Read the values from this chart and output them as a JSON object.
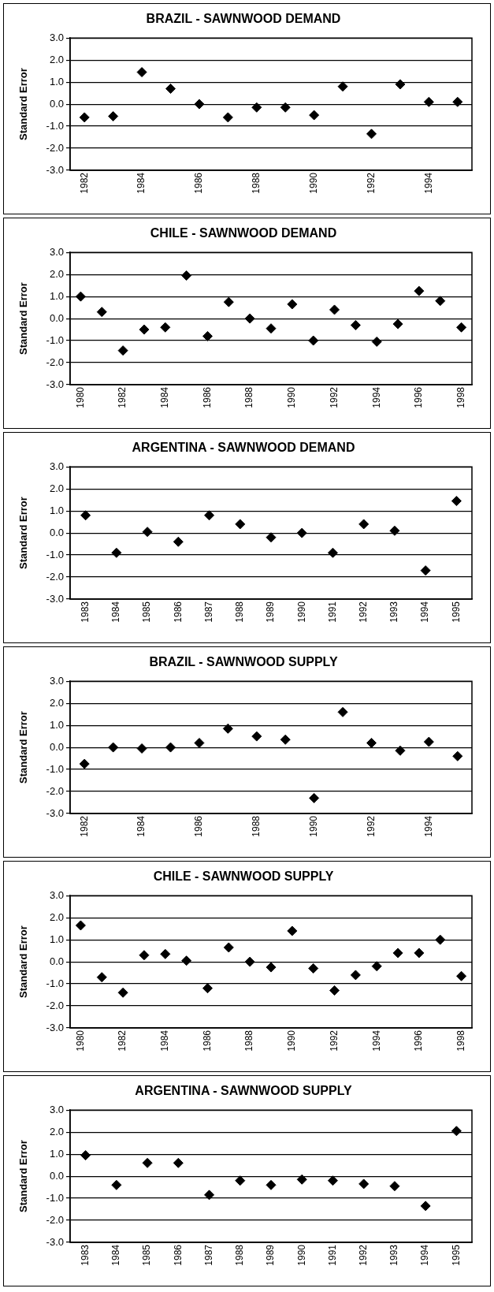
{
  "chart_data": [
    {
      "type": "scatter",
      "title": "BRAZIL - SAWNWOOD DEMAND",
      "ylabel": "Standard Error",
      "categories": [
        "1982",
        null,
        "1984",
        null,
        "1986",
        null,
        "1988",
        null,
        "1990",
        null,
        "1992",
        null,
        "1994",
        null
      ],
      "values": [
        -0.6,
        -0.55,
        1.45,
        0.7,
        0.0,
        -0.6,
        -0.15,
        -0.15,
        -0.5,
        0.8,
        -1.35,
        0.9,
        0.1,
        0.1
      ],
      "color": "#000000",
      "ylim": [
        -3,
        3
      ],
      "yticks": [
        {
          "value": -3,
          "label": "-3.0"
        },
        {
          "value": -2,
          "label": "-2.0"
        },
        {
          "value": -1,
          "label": "-1.0"
        },
        {
          "value": 0,
          "label": "0.0"
        },
        {
          "value": 1,
          "label": "1.0"
        },
        {
          "value": 2,
          "label": "2.0"
        },
        {
          "value": 3,
          "label": "3.0"
        }
      ],
      "grid": "y",
      "marker": "diamond"
    },
    {
      "type": "scatter",
      "title": "CHILE - SAWNWOOD DEMAND",
      "ylabel": "Standard Error",
      "categories": [
        "1980",
        null,
        "1982",
        null,
        "1984",
        null,
        "1986",
        null,
        "1988",
        null,
        "1990",
        null,
        "1992",
        null,
        "1994",
        null,
        "1996",
        null,
        "1998"
      ],
      "values": [
        1.0,
        0.3,
        -1.45,
        -0.5,
        -0.4,
        1.95,
        -0.8,
        0.75,
        0.0,
        -0.45,
        0.65,
        -1.0,
        0.4,
        -0.3,
        -1.05,
        -0.25,
        1.25,
        0.8,
        -0.4
      ],
      "color": "#000000",
      "ylim": [
        -3,
        3
      ],
      "yticks": [
        {
          "value": -3,
          "label": "-3.0"
        },
        {
          "value": -2,
          "label": "-2.0"
        },
        {
          "value": -1,
          "label": "-1.0"
        },
        {
          "value": 0,
          "label": "0.0"
        },
        {
          "value": 1,
          "label": "1.0"
        },
        {
          "value": 2,
          "label": "2.0"
        },
        {
          "value": 3,
          "label": "3.0"
        }
      ],
      "grid": "y",
      "marker": "diamond"
    },
    {
      "type": "scatter",
      "title": "ARGENTINA - SAWNWOOD DEMAND",
      "ylabel": "Standard Error",
      "categories": [
        "1983",
        "1984",
        "1985",
        "1986",
        "1987",
        "1988",
        "1989",
        "1990",
        "1991",
        "1992",
        "1993",
        "1994",
        "1995"
      ],
      "values": [
        0.8,
        -0.9,
        0.05,
        -0.4,
        0.8,
        0.4,
        -0.2,
        0.0,
        -0.9,
        0.4,
        0.1,
        -1.7,
        1.45
      ],
      "color": "#000000",
      "ylim": [
        -3,
        3
      ],
      "yticks": [
        {
          "value": -3,
          "label": "-3.0"
        },
        {
          "value": -2,
          "label": "-2.0"
        },
        {
          "value": -1,
          "label": "-1.0"
        },
        {
          "value": 0,
          "label": "0.0"
        },
        {
          "value": 1,
          "label": "1.0"
        },
        {
          "value": 2,
          "label": "2.0"
        },
        {
          "value": 3,
          "label": "3.0"
        }
      ],
      "grid": "y",
      "marker": "diamond"
    },
    {
      "type": "scatter",
      "title": "BRAZIL - SAWNWOOD SUPPLY",
      "ylabel": "Standard Error",
      "categories": [
        "1982",
        null,
        "1984",
        null,
        "1986",
        null,
        "1988",
        null,
        "1990",
        null,
        "1992",
        null,
        "1994",
        null
      ],
      "values": [
        -0.75,
        0.0,
        -0.05,
        0.0,
        0.2,
        0.85,
        0.5,
        0.35,
        -2.3,
        1.6,
        0.2,
        -0.15,
        0.25,
        -0.4
      ],
      "color": "#000000",
      "ylim": [
        -3,
        3
      ],
      "yticks": [
        {
          "value": -3,
          "label": "-3.0"
        },
        {
          "value": -2,
          "label": "-2.0"
        },
        {
          "value": -1,
          "label": "-1.0"
        },
        {
          "value": 0,
          "label": "0.0"
        },
        {
          "value": 1,
          "label": "1.0"
        },
        {
          "value": 2,
          "label": "2.0"
        },
        {
          "value": 3,
          "label": "3.0"
        }
      ],
      "grid": "y",
      "marker": "diamond"
    },
    {
      "type": "scatter",
      "title": "CHILE - SAWNWOOD SUPPLY",
      "ylabel": "Standard Error",
      "categories": [
        "1980",
        null,
        "1982",
        null,
        "1984",
        null,
        "1986",
        null,
        "1988",
        null,
        "1990",
        null,
        "1992",
        null,
        "1994",
        null,
        "1996",
        null,
        "1998"
      ],
      "values": [
        1.65,
        -0.7,
        -1.4,
        0.3,
        0.35,
        0.05,
        -1.2,
        0.65,
        0.0,
        -0.25,
        1.4,
        -0.3,
        -1.3,
        -0.6,
        -0.2,
        0.4,
        0.4,
        1.0,
        -0.65
      ],
      "color": "#000000",
      "ylim": [
        -3,
        3
      ],
      "yticks": [
        {
          "value": -3,
          "label": "-3.0"
        },
        {
          "value": -2,
          "label": "-2.0"
        },
        {
          "value": -1,
          "label": "-1.0"
        },
        {
          "value": 0,
          "label": "0.0"
        },
        {
          "value": 1,
          "label": "1.0"
        },
        {
          "value": 2,
          "label": "2.0"
        },
        {
          "value": 3,
          "label": "3.0"
        }
      ],
      "grid": "y",
      "marker": "diamond"
    },
    {
      "type": "scatter",
      "title": "ARGENTINA - SAWNWOOD SUPPLY",
      "ylabel": "Standard Error",
      "categories": [
        "1983",
        "1984",
        "1985",
        "1986",
        "1987",
        "1988",
        "1989",
        "1990",
        "1991",
        "1992",
        "1993",
        "1994",
        "1995"
      ],
      "values": [
        0.95,
        -0.4,
        0.6,
        0.6,
        -0.85,
        -0.2,
        -0.4,
        -0.15,
        -0.2,
        -0.35,
        -0.45,
        -1.35,
        2.05
      ],
      "color": "#000000",
      "ylim": [
        -3,
        3
      ],
      "yticks": [
        {
          "value": -3,
          "label": "-3.0"
        },
        {
          "value": -2,
          "label": "-2.0"
        },
        {
          "value": -1,
          "label": "-1.0"
        },
        {
          "value": 0,
          "label": "0.0"
        },
        {
          "value": 1,
          "label": "1.0"
        },
        {
          "value": 2,
          "label": "2.0"
        },
        {
          "value": 3,
          "label": "3.0"
        }
      ],
      "grid": "y",
      "marker": "diamond"
    }
  ]
}
